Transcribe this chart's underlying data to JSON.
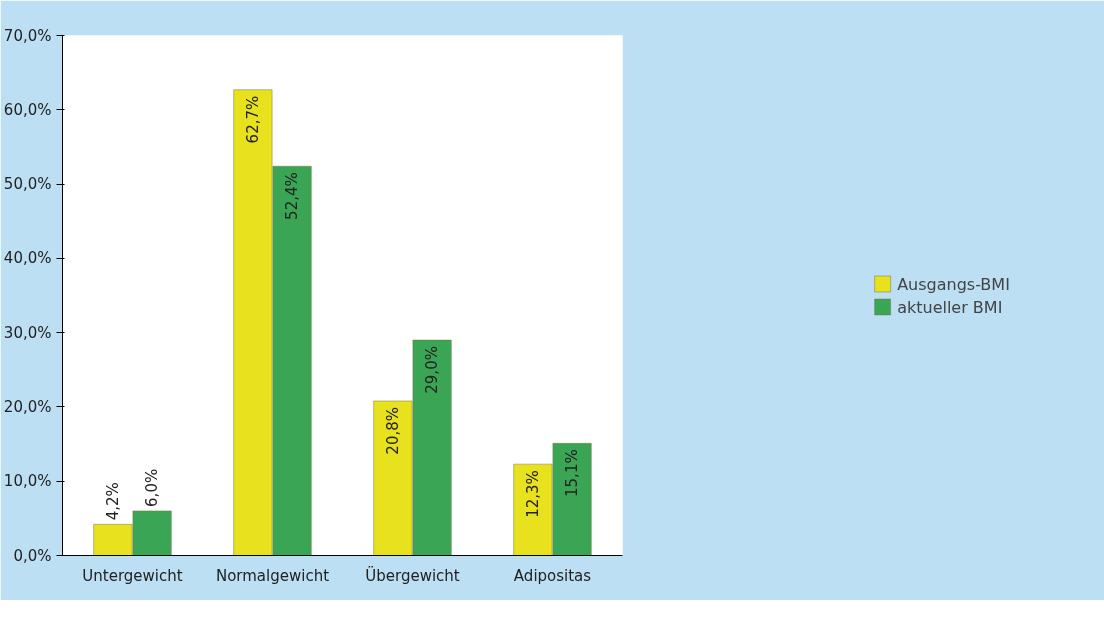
{
  "chart_data": {
    "type": "bar",
    "categories": [
      "Untergewicht",
      "Normalgewicht",
      "Übergewicht",
      "Adipositas"
    ],
    "series": [
      {
        "name": "Ausgangs-BMI",
        "color": "#e8e11e",
        "values": [
          4.2,
          62.7,
          20.8,
          12.3
        ],
        "value_labels": [
          "4,2%",
          "62,7%",
          "20,8%",
          "12,3%"
        ]
      },
      {
        "name": "aktueller BMI",
        "color": "#3aa655",
        "values": [
          6.0,
          52.4,
          29.0,
          15.1
        ],
        "value_labels": [
          "6,0%",
          "52,4%",
          "29,0%",
          "15,1%"
        ]
      }
    ],
    "ylim": [
      0,
      70
    ],
    "yticks": [
      {
        "value": 0,
        "label": "0,0%"
      },
      {
        "value": 10,
        "label": "10,0%"
      },
      {
        "value": 20,
        "label": "20,0%"
      },
      {
        "value": 30,
        "label": "30,0%"
      },
      {
        "value": 40,
        "label": "40,0%"
      },
      {
        "value": 50,
        "label": "50,0%"
      },
      {
        "value": 60,
        "label": "60,0%"
      },
      {
        "value": 70,
        "label": "70,0%"
      }
    ],
    "grid": false,
    "legend": "right"
  }
}
